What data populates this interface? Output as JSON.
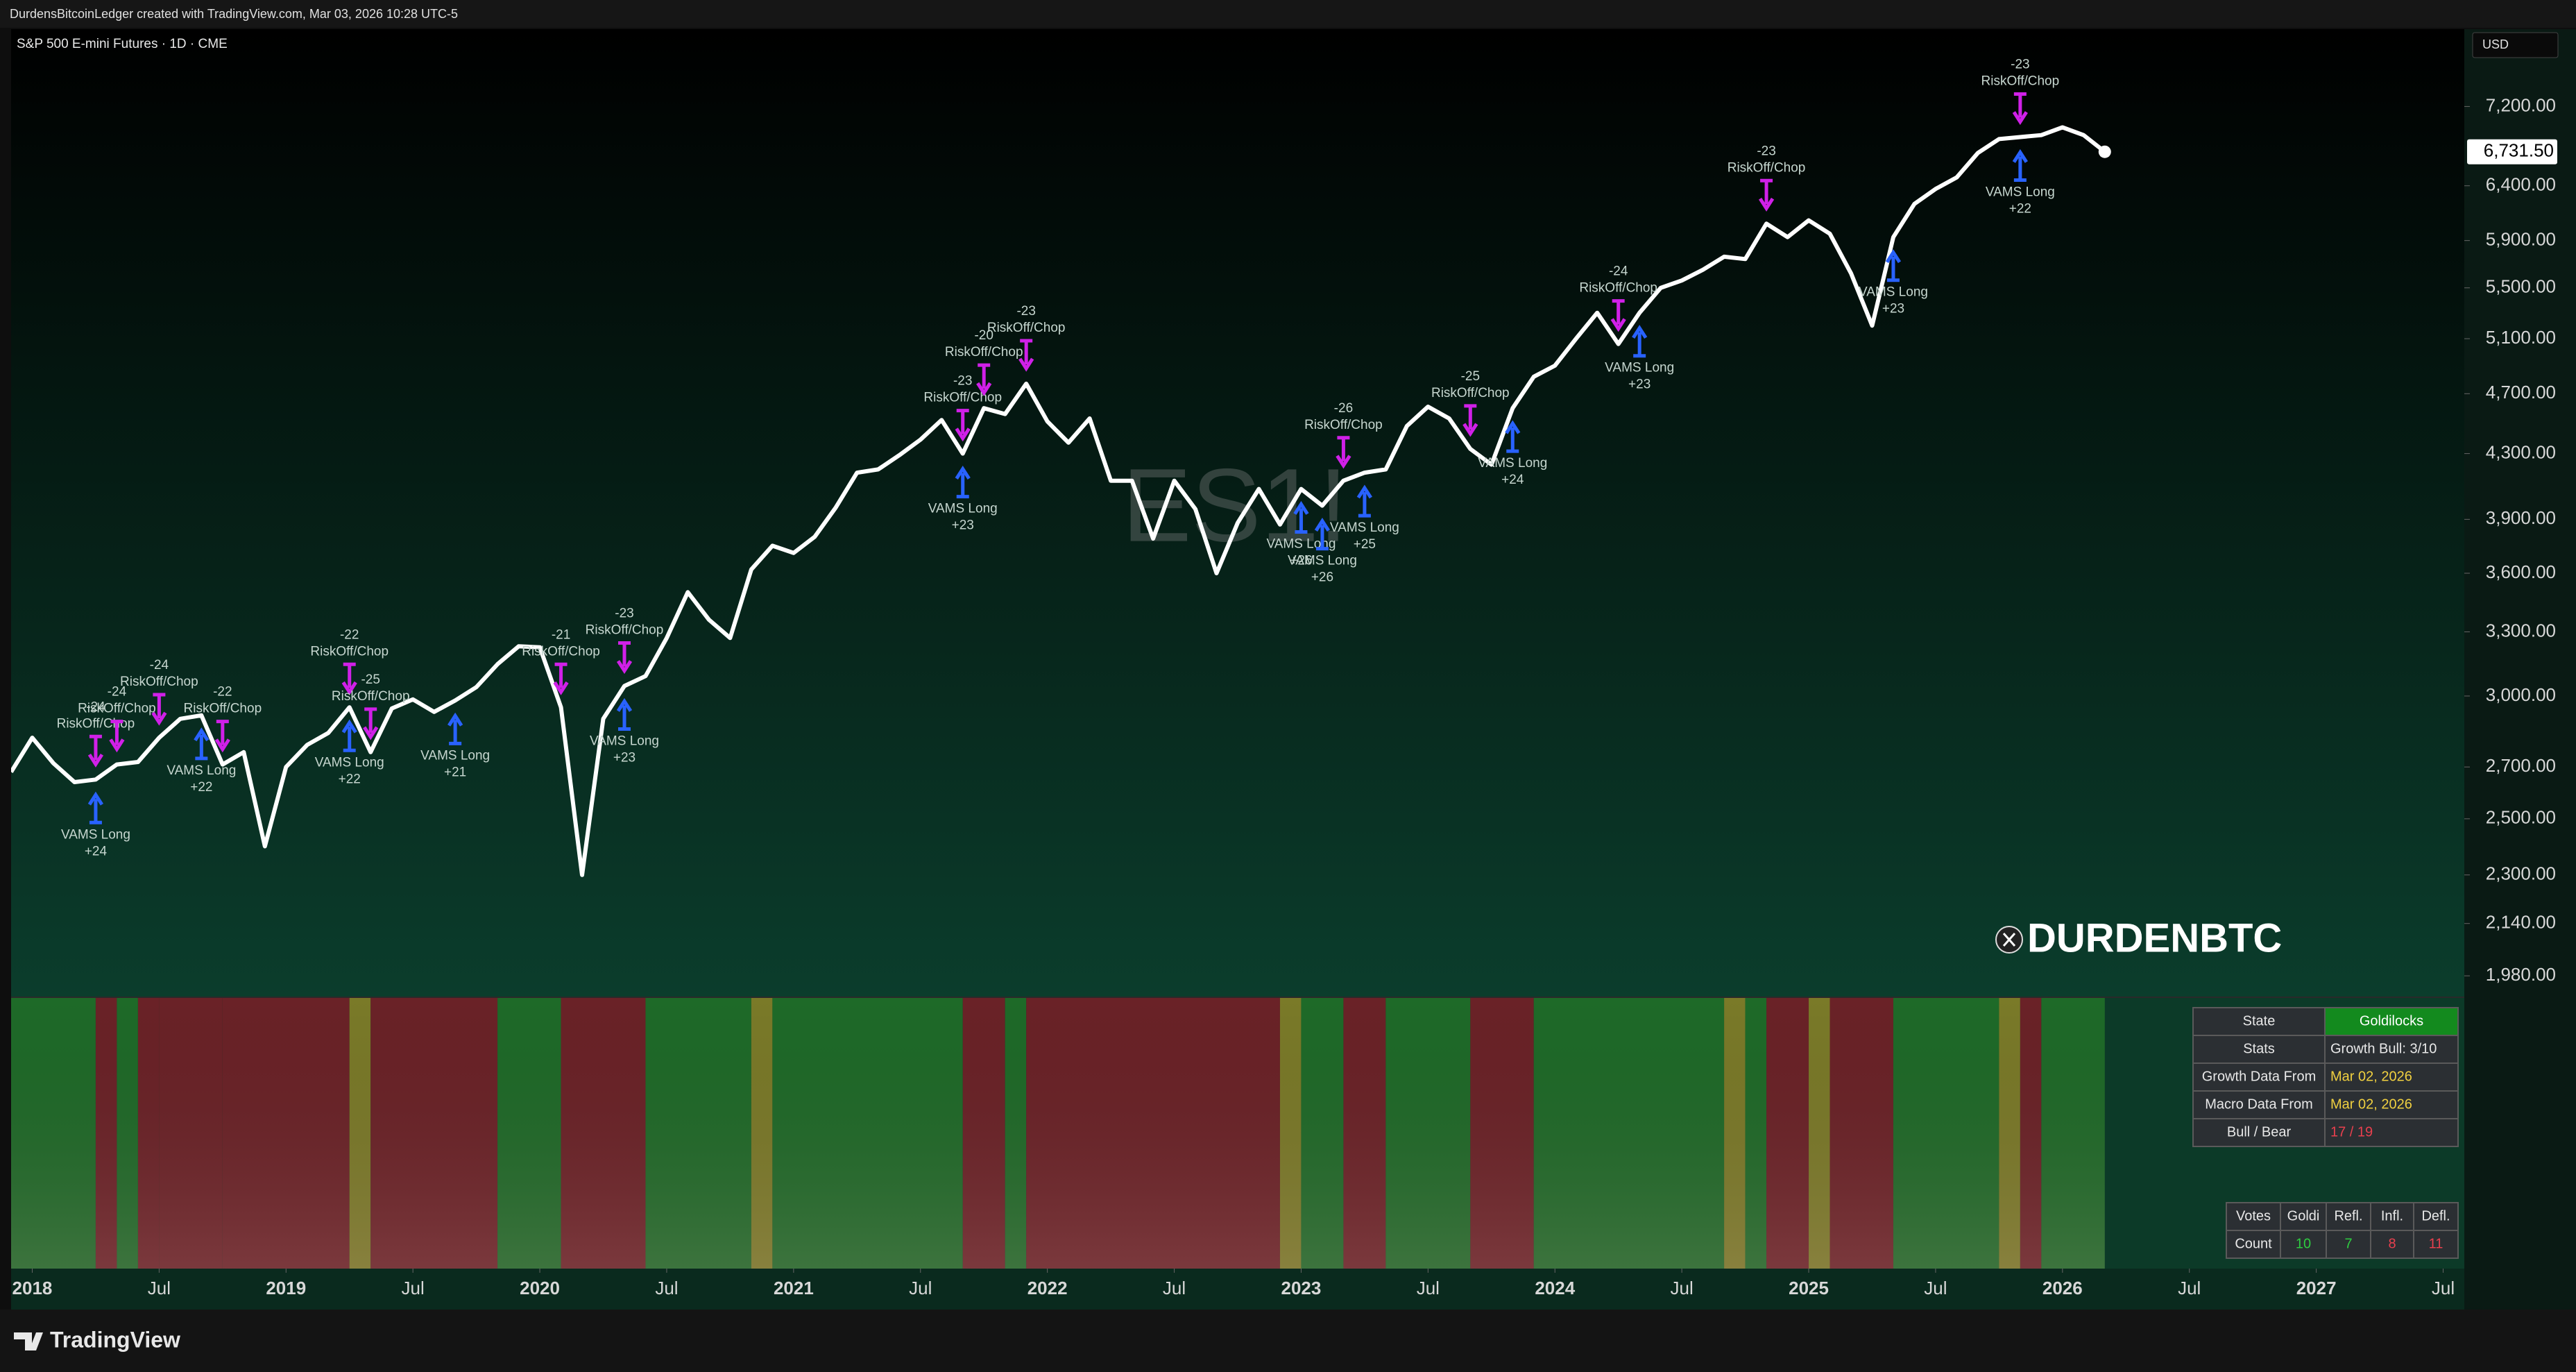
{
  "chart_data": {
    "type": "line",
    "header": "DurdensBitcoinLedger created with TradingView.com, Mar 03, 2026 10:28 UTC-5",
    "title": "S&P 500 E-mini Futures · 1D · CME",
    "currency": "USD",
    "watermark": "ES1!",
    "color": "#ffffff",
    "log_scale": true,
    "x": [
      "2017-12",
      "2018-01",
      "2018-02",
      "2018-03",
      "2018-04",
      "2018-05",
      "2018-06",
      "2018-07",
      "2018-08",
      "2018-09",
      "2018-10",
      "2018-11",
      "2018-12",
      "2019-01",
      "2019-02",
      "2019-03",
      "2019-04",
      "2019-05",
      "2019-06",
      "2019-07",
      "2019-08",
      "2019-09",
      "2019-10",
      "2019-11",
      "2019-12",
      "2020-01",
      "2020-02",
      "2020-03",
      "2020-04",
      "2020-05",
      "2020-06",
      "2020-07",
      "2020-08",
      "2020-09",
      "2020-10",
      "2020-11",
      "2020-12",
      "2021-01",
      "2021-02",
      "2021-03",
      "2021-04",
      "2021-05",
      "2021-06",
      "2021-07",
      "2021-08",
      "2021-09",
      "2021-10",
      "2021-11",
      "2021-12",
      "2022-01",
      "2022-02",
      "2022-03",
      "2022-04",
      "2022-05",
      "2022-06",
      "2022-07",
      "2022-08",
      "2022-09",
      "2022-10",
      "2022-11",
      "2022-12",
      "2023-01",
      "2023-02",
      "2023-03",
      "2023-04",
      "2023-05",
      "2023-06",
      "2023-07",
      "2023-08",
      "2023-09",
      "2023-10",
      "2023-11",
      "2023-12",
      "2024-01",
      "2024-02",
      "2024-03",
      "2024-04",
      "2024-05",
      "2024-06",
      "2024-07",
      "2024-08",
      "2024-09",
      "2024-10",
      "2024-11",
      "2024-12",
      "2025-01",
      "2025-02",
      "2025-03",
      "2025-04",
      "2025-05",
      "2025-06",
      "2025-07",
      "2025-08",
      "2025-09",
      "2025-10",
      "2025-11",
      "2025-12",
      "2026-01",
      "2026-02",
      "2026-03"
    ],
    "values": [
      2680,
      2820,
      2715,
      2640,
      2650,
      2710,
      2720,
      2820,
      2900,
      2915,
      2710,
      2760,
      2400,
      2700,
      2790,
      2840,
      2950,
      2760,
      2945,
      2985,
      2930,
      2980,
      3040,
      3145,
      3230,
      3225,
      2950,
      2300,
      2900,
      3045,
      3090,
      3270,
      3500,
      3360,
      3270,
      3620,
      3750,
      3710,
      3800,
      3970,
      4180,
      4200,
      4290,
      4390,
      4520,
      4300,
      4600,
      4560,
      4770,
      4510,
      4370,
      4530,
      4130,
      4130,
      3790,
      4130,
      3960,
      3600,
      3880,
      4080,
      3870,
      4080,
      3980,
      4130,
      4180,
      4200,
      4480,
      4610,
      4530,
      4330,
      4230,
      4600,
      4820,
      4900,
      5100,
      5300,
      5060,
      5300,
      5500,
      5560,
      5650,
      5760,
      5740,
      6050,
      5930,
      6080,
      5960,
      5620,
      5200,
      5930,
      6230,
      6370,
      6480,
      6720,
      6860,
      6880,
      6900,
      6980,
      6900,
      6731.5
    ],
    "last_price": {
      "value": 6731.5,
      "label": "6,731.50"
    },
    "xlim": [
      "2017-12",
      "2027-08"
    ],
    "ylim": [
      1918,
      8076
    ],
    "xticks": [
      {
        "value": "2018-01",
        "label": "2018"
      },
      {
        "value": "2018-07",
        "label": "Jul"
      },
      {
        "value": "2019-01",
        "label": "2019"
      },
      {
        "value": "2019-07",
        "label": "Jul"
      },
      {
        "value": "2020-01",
        "label": "2020"
      },
      {
        "value": "2020-07",
        "label": "Jul"
      },
      {
        "value": "2021-01",
        "label": "2021"
      },
      {
        "value": "2021-07",
        "label": "Jul"
      },
      {
        "value": "2022-01",
        "label": "2022"
      },
      {
        "value": "2022-07",
        "label": "Jul"
      },
      {
        "value": "2023-01",
        "label": "2023"
      },
      {
        "value": "2023-07",
        "label": "Jul"
      },
      {
        "value": "2024-01",
        "label": "2024"
      },
      {
        "value": "2024-07",
        "label": "Jul"
      },
      {
        "value": "2025-01",
        "label": "2025"
      },
      {
        "value": "2025-07",
        "label": "Jul"
      },
      {
        "value": "2026-01",
        "label": "2026"
      },
      {
        "value": "2026-07",
        "label": "Jul"
      },
      {
        "value": "2027-01",
        "label": "2027"
      },
      {
        "value": "2027-07",
        "label": "Jul"
      }
    ],
    "yticks": [
      {
        "value": 1980,
        "label": "1,980.00"
      },
      {
        "value": 2140,
        "label": "2,140.00"
      },
      {
        "value": 2300,
        "label": "2,300.00"
      },
      {
        "value": 2500,
        "label": "2,500.00"
      },
      {
        "value": 2700,
        "label": "2,700.00"
      },
      {
        "value": 3000,
        "label": "3,000.00"
      },
      {
        "value": 3300,
        "label": "3,300.00"
      },
      {
        "value": 3600,
        "label": "3,600.00"
      },
      {
        "value": 3900,
        "label": "3,900.00"
      },
      {
        "value": 4300,
        "label": "4,300.00"
      },
      {
        "value": 4700,
        "label": "4,700.00"
      },
      {
        "value": 5100,
        "label": "5,100.00"
      },
      {
        "value": 5500,
        "label": "5,500.00"
      },
      {
        "value": 5900,
        "label": "5,900.00"
      },
      {
        "value": 6400,
        "label": "6,400.00"
      },
      {
        "value": 7200,
        "label": "7,200.00"
      }
    ],
    "signals": [
      {
        "x": "2018-04",
        "label": "RiskOff/Chop",
        "score": "-24",
        "position": "above",
        "color": "#d020e8"
      },
      {
        "x": "2018-05",
        "label": "RiskOff/Chop",
        "score": "-24",
        "position": "above",
        "color": "#d020e8"
      },
      {
        "x": "2018-07",
        "label": "RiskOff/Chop",
        "score": "-24",
        "position": "above",
        "color": "#d020e8"
      },
      {
        "x": "2018-10",
        "label": "RiskOff/Chop",
        "score": "-22",
        "position": "above",
        "color": "#d020e8"
      },
      {
        "x": "2019-04",
        "label": "RiskOff/Chop",
        "score": "-22",
        "position": "above",
        "color": "#d020e8"
      },
      {
        "x": "2019-05",
        "label": "RiskOff/Chop",
        "score": "-25",
        "position": "above",
        "color": "#d020e8"
      },
      {
        "x": "2020-02",
        "label": "RiskOff/Chop",
        "score": "-21",
        "position": "above",
        "color": "#d020e8"
      },
      {
        "x": "2020-05",
        "label": "RiskOff/Chop",
        "score": "-23",
        "position": "above",
        "color": "#d020e8"
      },
      {
        "x": "2021-09",
        "label": "RiskOff/Chop",
        "score": "-23",
        "position": "above",
        "color": "#d020e8"
      },
      {
        "x": "2021-10",
        "label": "RiskOff/Chop",
        "score": "-20",
        "position": "above",
        "color": "#d020e8"
      },
      {
        "x": "2021-12",
        "label": "RiskOff/Chop",
        "score": "-23",
        "position": "above",
        "color": "#d020e8"
      },
      {
        "x": "2023-03",
        "label": "RiskOff/Chop",
        "score": "-26",
        "position": "above",
        "color": "#d020e8"
      },
      {
        "x": "2023-09",
        "label": "RiskOff/Chop",
        "score": "-25",
        "position": "above",
        "color": "#d020e8"
      },
      {
        "x": "2024-04",
        "label": "RiskOff/Chop",
        "score": "-24",
        "position": "above",
        "color": "#d020e8"
      },
      {
        "x": "2024-11",
        "label": "RiskOff/Chop",
        "score": "-23",
        "position": "above",
        "color": "#d020e8"
      },
      {
        "x": "2025-11",
        "label": "RiskOff/Chop",
        "score": "-23",
        "position": "above",
        "color": "#d020e8"
      },
      {
        "x": "2018-04",
        "label": "VAMS Long",
        "score": "+24",
        "position": "below",
        "color": "#2962ff"
      },
      {
        "x": "2018-09",
        "label": "VAMS Long",
        "score": "+22",
        "position": "below",
        "color": "#2962ff"
      },
      {
        "x": "2019-04",
        "label": "VAMS Long",
        "score": "+22",
        "position": "below",
        "color": "#2962ff"
      },
      {
        "x": "2019-09",
        "label": "VAMS Long",
        "score": "+21",
        "position": "below",
        "color": "#2962ff"
      },
      {
        "x": "2020-05",
        "label": "VAMS Long",
        "score": "+23",
        "position": "below",
        "color": "#2962ff"
      },
      {
        "x": "2021-09",
        "label": "VAMS Long",
        "score": "+23",
        "position": "below",
        "color": "#2962ff"
      },
      {
        "x": "2023-01",
        "label": "VAMS Long",
        "score": "+26",
        "position": "below",
        "color": "#2962ff"
      },
      {
        "x": "2023-02",
        "label": "VAMS Long",
        "score": "+26",
        "position": "below",
        "color": "#2962ff"
      },
      {
        "x": "2023-04",
        "label": "VAMS Long",
        "score": "+25",
        "position": "below",
        "color": "#2962ff"
      },
      {
        "x": "2023-11",
        "label": "VAMS Long",
        "score": "+24",
        "position": "below",
        "color": "#2962ff"
      },
      {
        "x": "2024-05",
        "label": "VAMS Long",
        "score": "+23",
        "position": "below",
        "color": "#2962ff"
      },
      {
        "x": "2025-05",
        "label": "VAMS Long",
        "score": "+23",
        "position": "below",
        "color": "#2962ff"
      },
      {
        "x": "2025-11",
        "label": "VAMS Long",
        "score": "+22",
        "position": "below",
        "color": "#2962ff"
      }
    ],
    "regimes": [
      {
        "start": "2017-12",
        "end": "2018-04",
        "color": "#1e6a28"
      },
      {
        "start": "2018-04",
        "end": "2018-05",
        "color": "#6a2227"
      },
      {
        "start": "2018-05",
        "end": "2018-06",
        "color": "#1e6a28"
      },
      {
        "start": "2018-06",
        "end": "2018-07",
        "color": "#6a2227"
      },
      {
        "start": "2018-07",
        "end": "2018-10",
        "color": "#6a2227"
      },
      {
        "start": "2018-10",
        "end": "2019-04",
        "color": "#6a2227"
      },
      {
        "start": "2019-04",
        "end": "2019-05",
        "color": "#7a7a28"
      },
      {
        "start": "2019-05",
        "end": "2019-11",
        "color": "#6a2227"
      },
      {
        "start": "2019-11",
        "end": "2020-02",
        "color": "#1e6a28"
      },
      {
        "start": "2020-02",
        "end": "2020-06",
        "color": "#6a2227"
      },
      {
        "start": "2020-06",
        "end": "2020-11",
        "color": "#1e6a28"
      },
      {
        "start": "2020-11",
        "end": "2020-12",
        "color": "#7a7a28"
      },
      {
        "start": "2020-12",
        "end": "2021-09",
        "color": "#1e6a28"
      },
      {
        "start": "2021-09",
        "end": "2021-11",
        "color": "#6a2227"
      },
      {
        "start": "2021-11",
        "end": "2021-12",
        "color": "#1e6a28"
      },
      {
        "start": "2021-12",
        "end": "2022-12",
        "color": "#6a2227"
      },
      {
        "start": "2022-12",
        "end": "2023-01",
        "color": "#7a7a28"
      },
      {
        "start": "2023-01",
        "end": "2023-03",
        "color": "#1e6a28"
      },
      {
        "start": "2023-03",
        "end": "2023-05",
        "color": "#6a2227"
      },
      {
        "start": "2023-05",
        "end": "2023-09",
        "color": "#1e6a28"
      },
      {
        "start": "2023-09",
        "end": "2023-12",
        "color": "#6a2227"
      },
      {
        "start": "2023-12",
        "end": "2024-09",
        "color": "#1e6a28"
      },
      {
        "start": "2024-09",
        "end": "2024-10",
        "color": "#7a7a28"
      },
      {
        "start": "2024-10",
        "end": "2024-11",
        "color": "#1e6a28"
      },
      {
        "start": "2024-11",
        "end": "2025-01",
        "color": "#6a2227"
      },
      {
        "start": "2025-01",
        "end": "2025-02",
        "color": "#7a7a28"
      },
      {
        "start": "2025-02",
        "end": "2025-05",
        "color": "#6a2227"
      },
      {
        "start": "2025-05",
        "end": "2025-10",
        "color": "#1e6a28"
      },
      {
        "start": "2025-10",
        "end": "2025-11",
        "color": "#7a7a28"
      },
      {
        "start": "2025-11",
        "end": "2025-12",
        "color": "#6a2227"
      },
      {
        "start": "2025-12",
        "end": "2026-03",
        "color": "#1e6a28"
      }
    ]
  },
  "branding": {
    "handle": "DURDENBTC",
    "footer": "TradingView"
  },
  "status_table": {
    "rows": [
      [
        "State",
        "Goldilocks"
      ],
      [
        "Stats",
        "Growth Bull: 3/10"
      ],
      [
        "Growth Data From",
        "Mar 02, 2026"
      ],
      [
        "Macro Data From",
        "Mar 02, 2026"
      ],
      [
        "Bull / Bear",
        "17 / 19"
      ]
    ],
    "value_colors": [
      "#ffffff",
      "#e8e8e8",
      "#f0d040",
      "#f0d040",
      "#e8404e"
    ]
  },
  "votes_table": {
    "header": [
      "Votes",
      "Goldi",
      "Refl.",
      "Infl.",
      "Defl."
    ],
    "row_label": "Count",
    "counts": [
      10,
      7,
      8,
      11
    ],
    "count_colors": [
      "#2ecc40",
      "#2ecc40",
      "#e8404e",
      "#e8404e"
    ]
  }
}
